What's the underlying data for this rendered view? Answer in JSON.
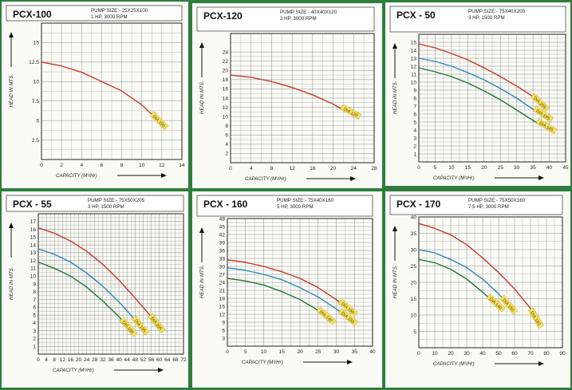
{
  "colors": {
    "background": "#2f7d3e",
    "panel": "#fbfbf6",
    "grid": "#8a8a8a",
    "red": "#c8372c",
    "blue": "#2e86c1",
    "green": "#1d7a3a",
    "tag": "#f3e25a"
  },
  "chart_data": [
    {
      "type": "line",
      "title": "PCX-100",
      "pump_size": "PUMP SIZE:- 25X25X100",
      "motor": "1 HP, 3000 RPM",
      "xlabel": "CAPACITY (M³/Hr)",
      "ylabel": "HEAD IN MTS.",
      "xlim": [
        0,
        14
      ],
      "ylim": [
        0,
        17.5
      ],
      "xticks": [
        0,
        2,
        4,
        6,
        8,
        10,
        12,
        14
      ],
      "yticks": [
        2.5,
        5,
        7.5,
        10,
        12.5,
        15
      ],
      "xtick_labels": [
        "0",
        "2",
        "4",
        "6",
        "8",
        "10",
        "12",
        "14"
      ],
      "ytick_labels": [
        "2.5",
        "5",
        "7.5",
        "10",
        "12.5",
        "15"
      ],
      "series": [
        {
          "name": "DIA 100",
          "color": "red",
          "x": [
            0,
            2,
            4,
            6,
            8,
            10,
            11,
            12
          ],
          "y": [
            12.5,
            12.0,
            11.2,
            10.0,
            8.8,
            7.0,
            5.8,
            4.5
          ]
        }
      ]
    },
    {
      "type": "line",
      "title": "PCX-120",
      "pump_size": "PUMP SIZE:- 40X40X120",
      "motor": "2 HP, 3000 RPM",
      "xlabel": "CAPACITY (M³/Hr)",
      "ylabel": "HEAD IN MTS.",
      "xlim": [
        0,
        28
      ],
      "ylim": [
        0,
        28
      ],
      "xticks": [
        0,
        4,
        8,
        12,
        16,
        20,
        24,
        28
      ],
      "yticks": [
        2,
        4,
        6,
        8,
        10,
        12,
        14,
        16,
        18,
        20,
        22,
        24
      ],
      "xtick_labels": [
        "0",
        "4",
        "8",
        "12",
        "16",
        "20",
        "24",
        "28"
      ],
      "ytick_labels": [
        "2",
        "4",
        "6",
        "8",
        "10",
        "12",
        "14",
        "16",
        "18",
        "20",
        "22",
        "24"
      ],
      "series": [
        {
          "name": "DIA 120",
          "color": "red",
          "x": [
            0,
            4,
            8,
            12,
            16,
            20,
            22,
            24
          ],
          "y": [
            19.0,
            18.5,
            17.6,
            16.3,
            14.7,
            12.7,
            11.4,
            10.2
          ]
        }
      ]
    },
    {
      "type": "line",
      "title": "PCX - 50",
      "pump_size": "PUMP SIZE:- 75X40X205",
      "motor": "3 HP, 1500 RPM",
      "xlabel": "CAPACITY (M³/Hr)",
      "ylabel": "HEAD IN MTS.",
      "xlim": [
        0,
        45
      ],
      "ylim": [
        0,
        16
      ],
      "xticks": [
        0,
        5,
        10,
        15,
        20,
        25,
        30,
        35,
        40,
        45
      ],
      "yticks": [
        1,
        2,
        3,
        4,
        5,
        6,
        7,
        8,
        9,
        10,
        11,
        12,
        13,
        14,
        15
      ],
      "xtick_labels": [
        "0",
        "5",
        "10",
        "15",
        "20",
        "25",
        "30",
        "35",
        "40",
        "45"
      ],
      "ytick_labels": [
        "1",
        "2",
        "3",
        "4",
        "5",
        "6",
        "7",
        "8",
        "9",
        "10",
        "11",
        "12",
        "13",
        "14",
        "15"
      ],
      "series": [
        {
          "name": "DIA 205",
          "color": "red",
          "x": [
            0,
            5,
            10,
            15,
            20,
            25,
            30,
            35,
            38
          ],
          "y": [
            14.8,
            14.3,
            13.6,
            12.8,
            11.8,
            10.7,
            9.5,
            8.2,
            7.0
          ]
        },
        {
          "name": "DIA 195",
          "color": "blue",
          "x": [
            0,
            5,
            10,
            15,
            20,
            25,
            30,
            35,
            39
          ],
          "y": [
            13.0,
            12.6,
            12.0,
            11.2,
            10.3,
            9.2,
            8.0,
            6.6,
            5.5
          ]
        },
        {
          "name": "DIA 185",
          "color": "green",
          "x": [
            0,
            5,
            10,
            15,
            20,
            25,
            30,
            35,
            40
          ],
          "y": [
            11.8,
            11.3,
            10.7,
            9.9,
            8.9,
            7.8,
            6.5,
            5.2,
            4.0
          ]
        }
      ]
    },
    {
      "type": "line",
      "title": "PCX - 55",
      "pump_size": "PUMP SIZE:- 75X50X205",
      "motor": "3 HP, 1500 RPM",
      "xlabel": "CAPACITY (M³/Hr)",
      "ylabel": "HEAD IN MTS.",
      "xlim": [
        0,
        72
      ],
      "ylim": [
        0,
        18
      ],
      "xticks": [
        0,
        4,
        8,
        12,
        16,
        20,
        24,
        28,
        32,
        36,
        40,
        44,
        48,
        52,
        56,
        60,
        64,
        68,
        72
      ],
      "yticks": [
        1,
        2,
        3,
        4,
        5,
        6,
        7,
        8,
        9,
        10,
        11,
        12,
        13,
        14,
        15,
        16,
        17
      ],
      "xtick_labels": [
        "0",
        "4",
        "8",
        "12",
        "16",
        "20",
        "24",
        "28",
        "32",
        "36",
        "40",
        "44",
        "48",
        "52",
        "56",
        "60",
        "64",
        "68",
        "72"
      ],
      "ytick_labels": [
        "1",
        "2",
        "3",
        "4",
        "5",
        "6",
        "7",
        "8",
        "9",
        "10",
        "11",
        "12",
        "13",
        "14",
        "15",
        "16",
        "17"
      ],
      "series": [
        {
          "name": "DIA 205",
          "color": "red",
          "x": [
            0,
            8,
            16,
            24,
            32,
            40,
            48,
            56,
            60
          ],
          "y": [
            16.2,
            15.5,
            14.5,
            13.2,
            11.5,
            9.5,
            7.2,
            4.8,
            3.5
          ]
        },
        {
          "name": "DIA 195",
          "color": "blue",
          "x": [
            0,
            8,
            16,
            24,
            32,
            40,
            48,
            52
          ],
          "y": [
            13.5,
            12.8,
            11.8,
            10.4,
            8.7,
            6.7,
            4.4,
            3.2
          ]
        },
        {
          "name": "DIA 185",
          "color": "green",
          "x": [
            0,
            8,
            16,
            24,
            32,
            40,
            46
          ],
          "y": [
            11.8,
            11.0,
            10.0,
            8.6,
            6.8,
            4.8,
            3.0
          ]
        }
      ]
    },
    {
      "type": "line",
      "title": "PCX - 160",
      "pump_size": "PUMP SIZE:- 75X40X160",
      "motor": "5 HP, 3000 RPM",
      "xlabel": "CAPACITY (M³/Hr)",
      "ylabel": "HEAD IN MTS.",
      "xlim": [
        0,
        40
      ],
      "ylim": [
        0,
        48
      ],
      "xticks": [
        0,
        5,
        10,
        15,
        20,
        25,
        30,
        35,
        40
      ],
      "yticks": [
        3,
        6,
        9,
        12,
        15,
        18,
        21,
        24,
        27,
        30,
        33,
        36,
        39,
        42,
        45,
        48
      ],
      "xtick_labels": [
        "0",
        "5",
        "10",
        "15",
        "20",
        "25",
        "30",
        "35",
        "40"
      ],
      "ytick_labels": [
        "3",
        "6",
        "9",
        "12",
        "15",
        "18",
        "21",
        "24",
        "27",
        "30",
        "33",
        "36",
        "39",
        "42",
        "45",
        "48"
      ],
      "series": [
        {
          "name": "DIA 160",
          "color": "red",
          "x": [
            0,
            5,
            10,
            15,
            20,
            25,
            30,
            34
          ],
          "y": [
            32.5,
            31.5,
            30.0,
            28.0,
            25.5,
            22.0,
            17.5,
            13.0
          ]
        },
        {
          "name": "DIA 150",
          "color": "blue",
          "x": [
            0,
            5,
            10,
            15,
            20,
            25,
            30,
            34
          ],
          "y": [
            29.5,
            28.5,
            27.0,
            25.0,
            22.0,
            18.5,
            14.0,
            9.5
          ]
        },
        {
          "name": "DIA 140",
          "color": "green",
          "x": [
            0,
            5,
            10,
            15,
            20,
            25,
            28
          ],
          "y": [
            25.5,
            24.5,
            23.0,
            20.5,
            17.5,
            13.5,
            10.0
          ]
        }
      ]
    },
    {
      "type": "line",
      "title": "PCX - 170",
      "pump_size": "PUMP SIZE:- 75X50X160",
      "motor": "7.5 HP, 3000 RPM",
      "xlabel": "CAPACITY (M³/Hr)",
      "ylabel": "HEAD IN MTS.",
      "xlim": [
        0,
        90
      ],
      "ylim": [
        0,
        40
      ],
      "xticks": [
        0,
        10,
        20,
        30,
        40,
        50,
        60,
        70,
        80,
        90
      ],
      "yticks": [
        5,
        10,
        15,
        20,
        25,
        30,
        35,
        40
      ],
      "xtick_labels": [
        "0",
        "10",
        "20",
        "30",
        "40",
        "50",
        "60",
        "70",
        "80",
        "90"
      ],
      "ytick_labels": [
        "5",
        "10",
        "15",
        "20",
        "25",
        "30",
        "35",
        "40"
      ],
      "series": [
        {
          "name": "DIA 160",
          "color": "red",
          "x": [
            0,
            10,
            20,
            30,
            40,
            50,
            60,
            70,
            75
          ],
          "y": [
            38.0,
            36.5,
            34.5,
            31.5,
            27.5,
            23.0,
            18.0,
            12.0,
            8.0
          ]
        },
        {
          "name": "DIA 150",
          "color": "blue",
          "x": [
            0,
            10,
            20,
            30,
            40,
            50,
            58
          ],
          "y": [
            30.0,
            29.0,
            27.0,
            24.5,
            21.0,
            16.5,
            12.0
          ]
        },
        {
          "name": "DIA 140",
          "color": "green",
          "x": [
            0,
            10,
            20,
            30,
            40,
            50
          ],
          "y": [
            27.0,
            26.0,
            24.0,
            21.0,
            17.0,
            12.5
          ]
        }
      ]
    }
  ]
}
